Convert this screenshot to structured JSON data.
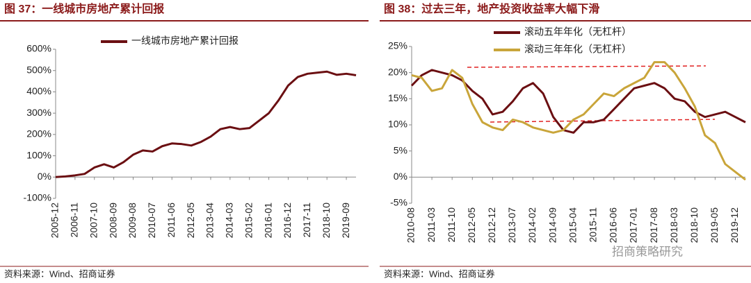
{
  "chart_data": [
    {
      "type": "line",
      "title": "图 37：一线城市房地产累计回报",
      "source": "资料来源：Wind、招商证券",
      "categories": [
        "2005-12",
        null,
        "2006-11",
        null,
        "2007-10",
        null,
        "2008-09",
        null,
        "2009-08",
        null,
        "2010-07",
        null,
        "2011-06",
        null,
        "2012-05",
        null,
        "2013-04",
        null,
        "2014-03",
        null,
        "2015-02",
        null,
        "2016-01",
        null,
        "2016-12",
        null,
        "2017-11",
        null,
        "2018-10",
        null,
        "2019-09",
        null
      ],
      "series": [
        {
          "name": "一线城市房地产累计回报",
          "color": "#6b0f12",
          "values": [
            0,
            3,
            8,
            15,
            45,
            60,
            45,
            70,
            105,
            125,
            120,
            145,
            158,
            155,
            148,
            165,
            190,
            225,
            235,
            225,
            230,
            265,
            300,
            360,
            430,
            470,
            485,
            490,
            495,
            480,
            485,
            478
          ]
        }
      ],
      "ylim": [
        -100,
        600
      ],
      "yticks": [
        {
          "value": -100,
          "label": "-100%"
        },
        {
          "value": 0,
          "label": "0%"
        },
        {
          "value": 100,
          "label": "100%"
        },
        {
          "value": 200,
          "label": "200%"
        },
        {
          "value": 300,
          "label": "300%"
        },
        {
          "value": 400,
          "label": "400%"
        },
        {
          "value": 500,
          "label": "500%"
        },
        {
          "value": 600,
          "label": "600%"
        }
      ],
      "legend": "top"
    },
    {
      "type": "line",
      "title": "图 38：过去三年，地产投资收益率大幅下滑",
      "source": "资料来源：Wind、招商证券",
      "watermark": "招商策略研究",
      "categories": [
        "2010-08",
        null,
        "2011-03",
        null,
        "2011-10",
        null,
        "2012-05",
        null,
        "2012-12",
        null,
        "2013-07",
        null,
        "2014-02",
        null,
        "2014-09",
        null,
        "2015-04",
        null,
        "2015-11",
        null,
        "2016-06",
        null,
        "2017-01",
        null,
        "2017-08",
        null,
        "2018-03",
        null,
        "2018-10",
        null,
        "2019-05",
        null,
        "2019-12",
        null
      ],
      "series": [
        {
          "name": "滚动五年年化（无杠杆）",
          "color": "#6b0f12",
          "values": [
            17.5,
            19.5,
            20.5,
            20,
            19.5,
            18.5,
            16.5,
            15,
            12,
            12.5,
            14.5,
            17,
            18,
            16,
            11.5,
            9,
            8.5,
            10.5,
            10.5,
            11,
            13,
            15,
            17,
            17.5,
            18,
            17,
            15,
            14.5,
            12.5,
            11.5,
            12,
            12.5,
            11.5,
            10.5
          ]
        },
        {
          "name": "滚动三年年化（无杠杆）",
          "color": "#c9a53a",
          "values": [
            19.5,
            19,
            16.5,
            17,
            20.5,
            19,
            14,
            10.5,
            9.5,
            9,
            11,
            10.5,
            9.5,
            9,
            8.5,
            9,
            11,
            12,
            14,
            16,
            15.5,
            17,
            18,
            19,
            22,
            22,
            20,
            17,
            13.5,
            8,
            6.5,
            2.5,
            1,
            -0.5
          ]
        }
      ],
      "ylim": [
        -5,
        25
      ],
      "yticks": [
        {
          "value": -5,
          "label": "-5%"
        },
        {
          "value": 0,
          "label": "0%"
        },
        {
          "value": 5,
          "label": "5%"
        },
        {
          "value": 10,
          "label": "10%"
        },
        {
          "value": 15,
          "label": "15%"
        },
        {
          "value": 20,
          "label": "20%"
        },
        {
          "value": 25,
          "label": "25%"
        }
      ],
      "legend": "top"
    }
  ]
}
